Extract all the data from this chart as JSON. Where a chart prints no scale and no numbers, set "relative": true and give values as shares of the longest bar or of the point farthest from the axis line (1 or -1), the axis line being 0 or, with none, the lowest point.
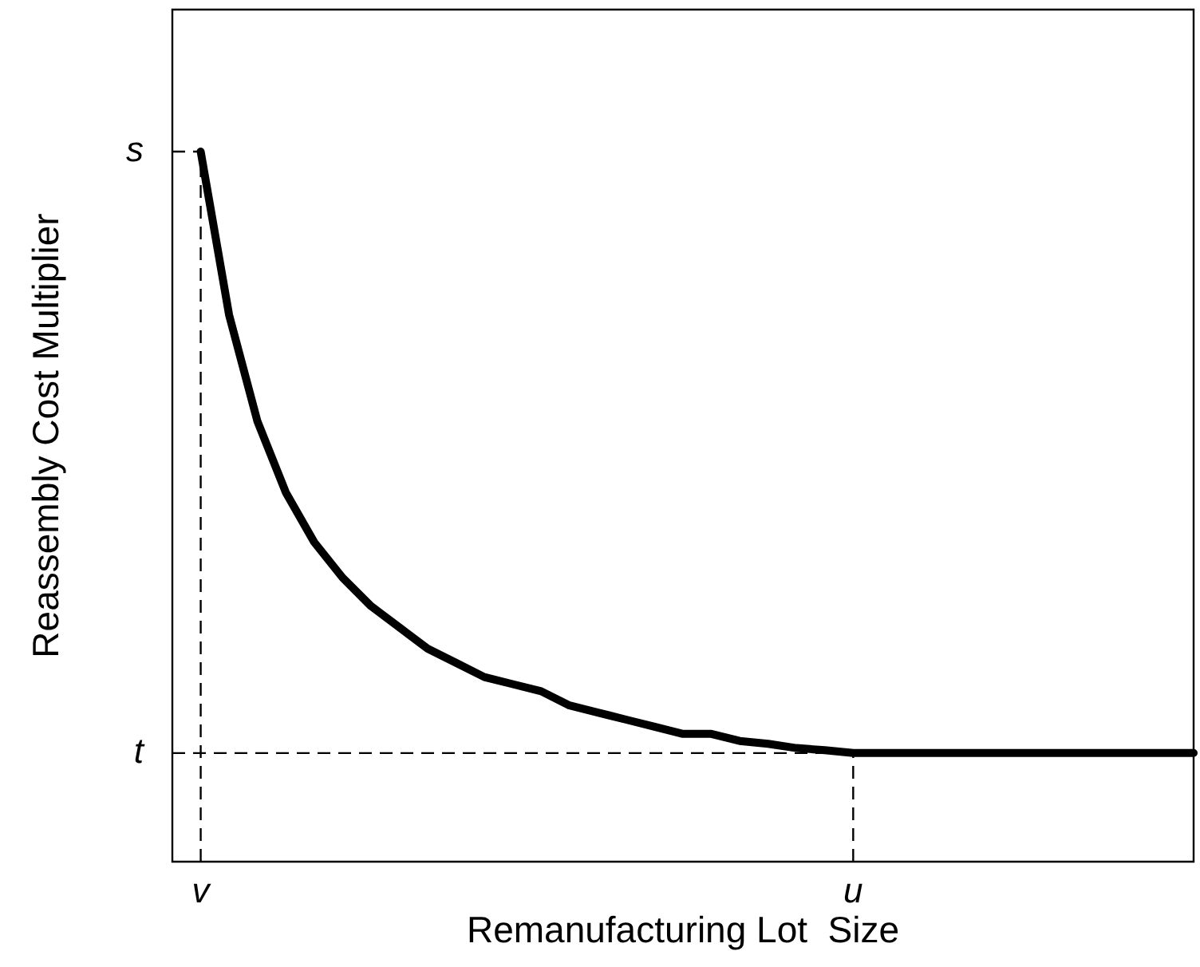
{
  "chart_data": {
    "type": "line",
    "xlabel": "Remanufacturing Lot  Size",
    "ylabel": "Reassembly Cost Multiplier",
    "relative": true,
    "categories": [
      null,
      "v",
      null,
      null,
      null,
      null,
      null,
      null,
      null,
      null,
      null,
      null,
      null,
      null,
      null,
      null,
      null,
      null,
      null,
      null,
      null,
      null,
      null,
      null,
      "u",
      null,
      null,
      null,
      null,
      null,
      null,
      null,
      null,
      null,
      null,
      null,
      null
    ],
    "grid": false,
    "legend": false,
    "marker": "none",
    "line_style": "solid",
    "series": [
      {
        "color": "#000000",
        "values": [
          null,
          1,
          0.77,
          0.62,
          0.52,
          0.45,
          0.4,
          0.36,
          0.33,
          0.3,
          0.28,
          0.26,
          0.25,
          0.24,
          0.22,
          0.21,
          0.2,
          0.19,
          0.18,
          0.18,
          0.17,
          0.166,
          0.16,
          0.157,
          0.153,
          0.153,
          0.153,
          0.153,
          0.153,
          0.153,
          0.153,
          0.153,
          0.153,
          0.153,
          0.153,
          0.153,
          0.153
        ]
      }
    ],
    "ref_lines": [
      {
        "axis": "y",
        "value": 1,
        "label": "s",
        "color": "#000000",
        "line_style": "dashed"
      },
      {
        "axis": "y",
        "value": 0.153,
        "label": "t",
        "color": "#000000",
        "line_style": "dashed"
      },
      {
        "axis": "x",
        "value": "v",
        "color": "#000000",
        "line_style": "dashed"
      },
      {
        "axis": "x",
        "value": "u",
        "color": "#000000",
        "line_style": "dashed"
      }
    ]
  }
}
